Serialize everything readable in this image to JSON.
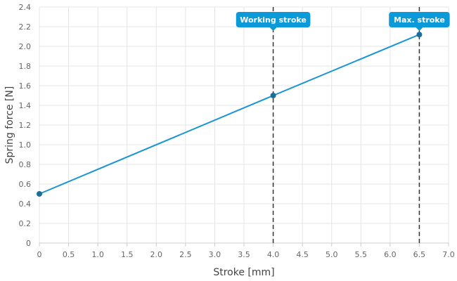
{
  "chart_data": {
    "type": "line",
    "xlabel": "Stroke [mm]",
    "ylabel": "Spring force [N]",
    "xlim": [
      0,
      7
    ],
    "ylim": [
      0,
      2.4
    ],
    "x_ticks": [
      "0",
      "0.5",
      "1.0",
      "1.5",
      "2.0",
      "2.5",
      "3.0",
      "3.5",
      "4.0",
      "4.5",
      "5.0",
      "5.5",
      "6.0",
      "6.5",
      "7.0"
    ],
    "y_ticks": [
      "0",
      "0.2",
      "0.4",
      "0.6",
      "0.8",
      "1.0",
      "1.2",
      "1.4",
      "1.6",
      "1.8",
      "2.0",
      "2.2",
      "2.4"
    ],
    "grid": true,
    "series": [
      {
        "color": "#1a96d4",
        "points": [
          {
            "x": 0,
            "y": 0.5
          },
          {
            "x": 4.0,
            "y": 1.5
          },
          {
            "x": 6.5,
            "y": 2.12
          }
        ]
      }
    ],
    "annotations": [
      {
        "label": "Working stroke",
        "x": 4.0
      },
      {
        "label": "Max. stroke",
        "x": 6.5
      }
    ],
    "colors": {
      "line": "#1a96d4",
      "point": "#1a6e9a",
      "callout": "#0a9ad9",
      "grid": "#e5e5e5",
      "marker_line": "#333333"
    }
  }
}
